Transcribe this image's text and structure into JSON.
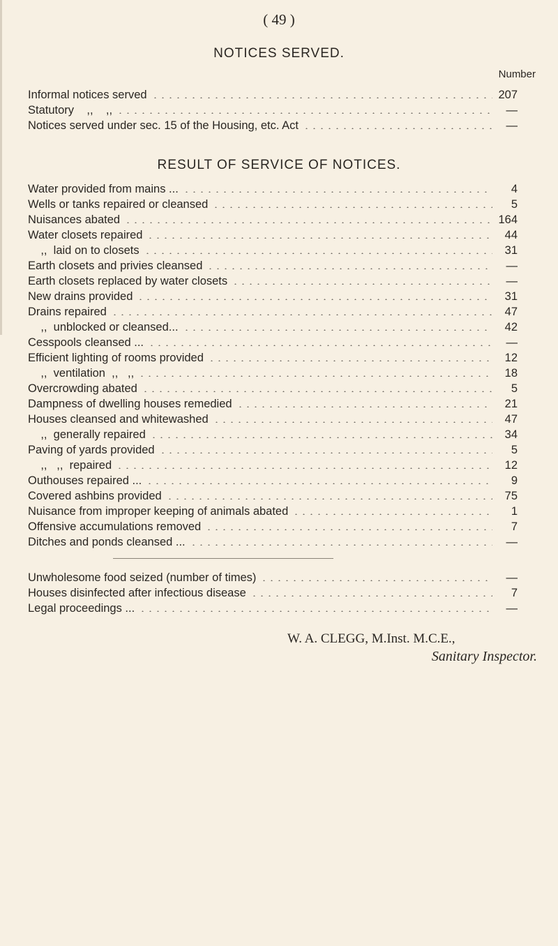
{
  "page_number": "( 49 )",
  "notices": {
    "title": "NOTICES SERVED.",
    "column_header": "Number",
    "rows": [
      {
        "label": "Informal notices served",
        "value": "207"
      },
      {
        "label": "Statutory    ,,    ,,",
        "value": "—"
      },
      {
        "label": "Notices served under sec. 15 of the Housing, etc. Act",
        "value": "—"
      }
    ]
  },
  "results": {
    "title": "RESULT OF SERVICE OF NOTICES.",
    "rows": [
      {
        "label": "Water provided from mains ...",
        "value": "4"
      },
      {
        "label": "Wells or tanks repaired or cleansed",
        "value": "5"
      },
      {
        "label": "Nuisances abated",
        "value": "164"
      },
      {
        "label": "Water closets repaired",
        "value": "44"
      },
      {
        "label": "    ,,  laid on to closets",
        "value": "31"
      },
      {
        "label": "Earth closets and privies cleansed",
        "value": "—"
      },
      {
        "label": "Earth closets replaced by water closets",
        "value": "—"
      },
      {
        "label": "New drains provided",
        "value": "31"
      },
      {
        "label": "Drains repaired",
        "value": "47"
      },
      {
        "label": "    ,,  unblocked or cleansed...",
        "value": "42"
      },
      {
        "label": "Cesspools cleansed ...",
        "value": "—"
      },
      {
        "label": "Efficient lighting of rooms provided",
        "value": "12"
      },
      {
        "label": "    ,,  ventilation  ,,   ,,",
        "value": "18"
      },
      {
        "label": "Overcrowding abated",
        "value": "5"
      },
      {
        "label": "Dampness of dwelling houses remedied",
        "value": "21"
      },
      {
        "label": "Houses cleansed and whitewashed",
        "value": "47"
      },
      {
        "label": "    ,,  generally repaired",
        "value": "34"
      },
      {
        "label": "Paving of yards provided",
        "value": "5"
      },
      {
        "label": "    ,,   ,,  repaired",
        "value": "12"
      },
      {
        "label": "Outhouses repaired ...",
        "value": "9"
      },
      {
        "label": "Covered ashbins provided",
        "value": "75"
      },
      {
        "label": "Nuisance from improper keeping of animals abated",
        "value": "1"
      },
      {
        "label": "Offensive accumulations removed",
        "value": "7"
      },
      {
        "label": "Ditches and ponds cleansed ...",
        "value": "—"
      }
    ]
  },
  "other": {
    "rows": [
      {
        "label": "Unwholesome food seized (number of times)",
        "value": "—"
      },
      {
        "label": "Houses disinfected after infectious disease",
        "value": "7"
      },
      {
        "label": "Legal proceedings ...",
        "value": "—"
      }
    ]
  },
  "signature": {
    "name": "W. A. CLEGG, M.Inst. M.C.E.,",
    "title": "Sanitary Inspector."
  }
}
